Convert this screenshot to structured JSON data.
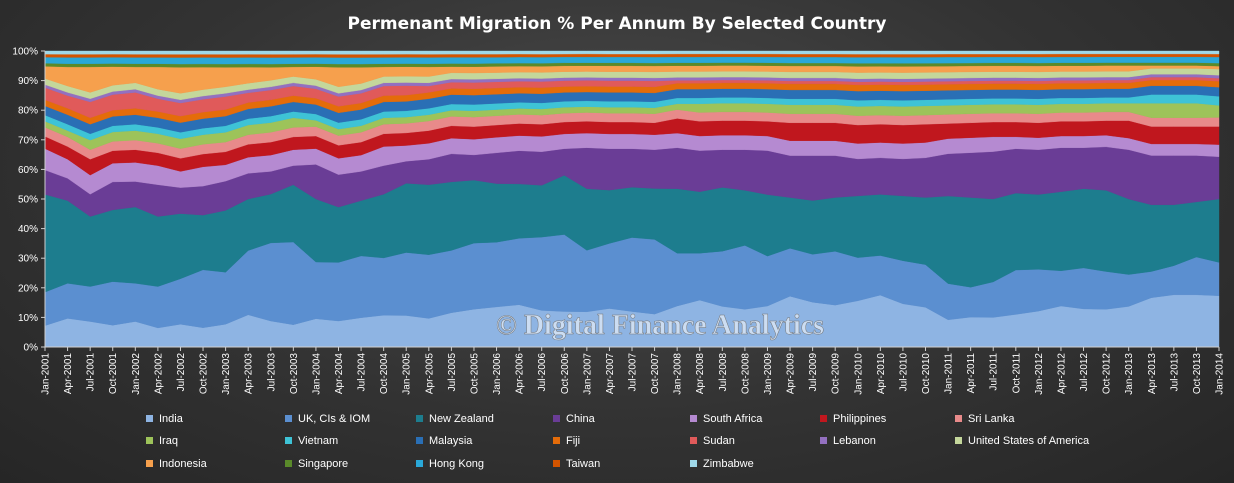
{
  "chart_data": {
    "type": "area",
    "stacking": "percent",
    "title": "Permenant Migration % Per Annum By Selected Country",
    "watermark": "© Digital Finance Analytics",
    "y_ticks": [
      "0%",
      "10%",
      "20%",
      "30%",
      "40%",
      "50%",
      "60%",
      "70%",
      "80%",
      "90%",
      "100%"
    ],
    "ylim": [
      0,
      100
    ],
    "x_tick_labels": [
      "Jan-2001",
      "Apr-2001",
      "Jul-2001",
      "Oct-2001",
      "Jan-2002",
      "Apr-2002",
      "Jul-2002",
      "Oct-2002",
      "Jan-2003",
      "Apr-2003",
      "Jul-2003",
      "Oct-2003",
      "Jan-2004",
      "Apr-2004",
      "Jul-2004",
      "Oct-2004",
      "Jan-2005",
      "Apr-2005",
      "Jul-2005",
      "Oct-2005",
      "Jan-2006",
      "Apr-2006",
      "Jul-2006",
      "Oct-2006",
      "Jan-2007",
      "Apr-2007",
      "Jul-2007",
      "Oct-2007",
      "Jan-2008",
      "Apr-2008",
      "Jul-2008",
      "Oct-2008",
      "Jan-2009",
      "Apr-2009",
      "Jul-2009",
      "Oct-2009",
      "Jan-2010",
      "Apr-2010",
      "Jul-2010",
      "Oct-2010",
      "Jan-2011",
      "Apr-2011",
      "Jul-2011",
      "Oct-2011",
      "Jan-2012",
      "Apr-2012",
      "Jul-2012",
      "Oct-2012",
      "Jan-2013",
      "Apr-2013",
      "Jul-2013",
      "Oct-2013",
      "Jan-2014"
    ],
    "legend_position": "bottom",
    "series": [
      {
        "name": "India",
        "color": "#8eb4e3",
        "values": [
          7,
          9,
          8,
          7,
          8,
          6,
          7,
          6,
          7,
          10,
          8,
          7,
          9,
          8,
          9,
          10,
          10,
          9,
          11,
          12,
          13,
          14,
          12,
          12,
          12,
          13,
          12,
          11,
          14,
          16,
          14,
          13,
          14,
          17,
          15,
          14,
          15,
          17,
          14,
          13,
          9,
          10,
          10,
          11,
          12,
          14,
          13,
          13,
          14,
          17,
          18,
          18,
          17
        ]
      },
      {
        "name": "UK, CIs & IOM",
        "color": "#5b8fd0",
        "values": [
          11,
          11,
          11,
          14,
          12,
          13,
          14,
          18,
          16,
          20,
          24,
          26,
          18,
          18,
          19,
          18,
          20,
          20,
          20,
          21,
          21,
          22,
          24,
          26,
          21,
          22,
          25,
          25,
          18,
          16,
          19,
          22,
          17,
          16,
          16,
          18,
          14,
          13,
          14,
          14,
          12,
          10,
          12,
          15,
          14,
          12,
          14,
          13,
          11,
          9,
          10,
          13,
          11
        ]
      },
      {
        "name": "New Zealand",
        "color": "#1d7d8e",
        "values": [
          32,
          26,
          22,
          23,
          24,
          22,
          20,
          17,
          19,
          16,
          15,
          18,
          20,
          17,
          17,
          20,
          22,
          22,
          22,
          20,
          19,
          18,
          17,
          20,
          21,
          18,
          17,
          17,
          22,
          21,
          22,
          19,
          21,
          17,
          18,
          18,
          20,
          20,
          21,
          22,
          29,
          30,
          28,
          26,
          25,
          27,
          27,
          28,
          26,
          23,
          21,
          19,
          21
        ]
      },
      {
        "name": "China",
        "color": "#6a3d96",
        "values": [
          8,
          7,
          7,
          9,
          8,
          10,
          8,
          9,
          9,
          8,
          7,
          6,
          11,
          10,
          9,
          9,
          7,
          8,
          9,
          8,
          10,
          11,
          11,
          9,
          14,
          14,
          13,
          13,
          14,
          14,
          13,
          14,
          15,
          14,
          15,
          14,
          12,
          12,
          12,
          13,
          14,
          15,
          16,
          15,
          15,
          15,
          14,
          15,
          17,
          17,
          17,
          16,
          14
        ]
      },
      {
        "name": "South Africa",
        "color": "#b58ad1",
        "values": [
          7,
          6,
          6,
          6,
          6,
          6,
          5,
          6,
          5,
          5,
          5,
          5,
          5,
          5,
          5,
          6,
          5,
          5,
          5,
          5,
          5,
          5,
          5,
          5,
          5,
          5,
          5,
          5,
          5,
          5,
          5,
          5,
          5,
          5,
          5,
          5,
          5,
          5,
          5,
          5,
          5,
          5,
          5,
          4,
          4,
          4,
          4,
          4,
          4,
          4,
          4,
          4,
          4
        ]
      },
      {
        "name": "Philippines",
        "color": "#c0171e",
        "values": [
          4,
          4,
          5,
          4,
          4,
          4,
          4,
          4,
          4,
          4,
          4,
          4,
          4,
          4,
          4,
          4,
          4,
          4,
          4,
          4,
          4,
          4,
          4,
          4,
          4,
          4,
          4,
          4,
          5,
          5,
          5,
          5,
          5,
          6,
          6,
          6,
          6,
          6,
          6,
          6,
          5,
          5,
          5,
          5,
          5,
          5,
          5,
          5,
          6,
          6,
          6,
          6,
          6
        ]
      },
      {
        "name": "Sri Lanka",
        "color": "#e88a8a",
        "values": [
          3,
          3,
          3,
          3,
          3,
          3,
          3,
          3,
          3,
          3,
          3,
          3,
          3,
          3,
          3,
          3,
          3,
          3,
          3,
          3,
          3,
          3,
          3,
          3,
          3,
          3,
          3,
          3,
          3,
          3,
          3,
          3,
          3,
          3,
          3,
          3,
          3,
          3,
          3,
          3,
          3,
          3,
          3,
          3,
          3,
          3,
          3,
          3,
          3,
          3,
          3,
          3,
          3
        ]
      },
      {
        "name": "Iraq",
        "color": "#9dc35a",
        "values": [
          2,
          2,
          3,
          3,
          3,
          3,
          3,
          3,
          3,
          3,
          3,
          3,
          2,
          2,
          2,
          2,
          2,
          2,
          2,
          2,
          2,
          2,
          2,
          2,
          2,
          2,
          2,
          2,
          2,
          3,
          3,
          3,
          3,
          3,
          3,
          3,
          3,
          3,
          3,
          3,
          3,
          3,
          3,
          3,
          3,
          3,
          3,
          3,
          3,
          5,
          5,
          5,
          4
        ]
      },
      {
        "name": "Vietnam",
        "color": "#3ec3d6",
        "values": [
          2,
          2,
          2,
          2,
          2,
          2,
          2,
          2,
          2,
          2,
          2,
          2,
          2,
          2,
          2,
          2,
          2,
          2,
          2,
          2,
          2,
          2,
          2,
          2,
          2,
          2,
          2,
          2,
          2,
          2,
          2,
          2,
          2,
          2,
          2,
          2,
          2,
          2,
          2,
          2,
          2,
          2,
          2,
          2,
          2,
          2,
          2,
          2,
          2,
          3,
          3,
          3,
          3
        ]
      },
      {
        "name": "Malaysia",
        "color": "#2a6fb5",
        "values": [
          3,
          3,
          3,
          3,
          3,
          3,
          3,
          3,
          3,
          3,
          3,
          3,
          3,
          3,
          3,
          3,
          3,
          3,
          3,
          3,
          3,
          3,
          3,
          3,
          3,
          3,
          3,
          3,
          3,
          3,
          3,
          3,
          3,
          3,
          3,
          3,
          3,
          3,
          3,
          3,
          3,
          3,
          3,
          3,
          3,
          3,
          3,
          3,
          3,
          3,
          3,
          3,
          3
        ]
      },
      {
        "name": "Fiji",
        "color": "#e46c0a",
        "values": [
          2,
          2,
          2,
          2,
          2,
          2,
          2,
          2,
          2,
          2,
          2,
          2,
          2,
          2,
          2,
          2,
          2,
          2,
          2,
          2,
          2,
          2,
          2,
          2,
          2,
          2,
          2,
          2,
          2,
          2,
          2,
          2,
          2,
          2,
          2,
          2,
          2,
          2,
          2,
          2,
          2,
          2,
          2,
          2,
          2,
          2,
          2,
          2,
          2,
          2,
          2,
          2,
          2
        ]
      },
      {
        "name": "Sudan",
        "color": "#e05a5a",
        "values": [
          4,
          4,
          5,
          5,
          5,
          4,
          4,
          4,
          4,
          3,
          3,
          3,
          3,
          3,
          3,
          3,
          3,
          2,
          2,
          2,
          2,
          2,
          2,
          2,
          2,
          2,
          2,
          2,
          1,
          1,
          1,
          1,
          1,
          1,
          1,
          1,
          1,
          1,
          1,
          1,
          1,
          1,
          1,
          1,
          1,
          1,
          1,
          1,
          1,
          1,
          1,
          1,
          1
        ]
      },
      {
        "name": "Lebanon",
        "color": "#9370c0",
        "values": [
          1,
          1,
          1,
          1,
          1,
          1,
          1,
          1,
          1,
          1,
          1,
          1,
          1,
          1,
          1,
          1,
          1,
          1,
          1,
          1,
          1,
          1,
          1,
          1,
          1,
          1,
          1,
          1,
          1,
          1,
          1,
          1,
          1,
          1,
          1,
          1,
          1,
          1,
          1,
          1,
          1,
          1,
          1,
          1,
          1,
          1,
          1,
          1,
          1,
          1,
          1,
          1,
          1
        ]
      },
      {
        "name": "United States of America",
        "color": "#c4d79b",
        "values": [
          2,
          2,
          2,
          2,
          2,
          2,
          2,
          2,
          2,
          2,
          2,
          2,
          2,
          2,
          2,
          2,
          2,
          2,
          2,
          2,
          2,
          2,
          2,
          2,
          2,
          2,
          2,
          2,
          2,
          2,
          2,
          2,
          2,
          2,
          2,
          2,
          2,
          2,
          2,
          2,
          2,
          2,
          2,
          2,
          2,
          2,
          2,
          2,
          2,
          2,
          2,
          2,
          2
        ]
      },
      {
        "name": "Indonesia",
        "color": "#f6a04d",
        "values": [
          4,
          6,
          8,
          6,
          5,
          7,
          8,
          7,
          6,
          5,
          4,
          3,
          4,
          6,
          5,
          3,
          3,
          3,
          2,
          2,
          2,
          2,
          2,
          2,
          2,
          2,
          2,
          2,
          2,
          2,
          2,
          2,
          2,
          2,
          2,
          2,
          2,
          2,
          2,
          2,
          2,
          2,
          2,
          2,
          2,
          2,
          2,
          2,
          2,
          1,
          1,
          1,
          1
        ]
      },
      {
        "name": "Singapore",
        "color": "#5a8a2a",
        "values": [
          1,
          1,
          1,
          1,
          1,
          1,
          1,
          1,
          1,
          1,
          1,
          1,
          1,
          1,
          1,
          1,
          1,
          1,
          1,
          1,
          1,
          1,
          1,
          1,
          1,
          1,
          1,
          1,
          1,
          1,
          1,
          1,
          1,
          1,
          1,
          1,
          1,
          1,
          1,
          1,
          1,
          1,
          1,
          1,
          1,
          1,
          1,
          1,
          1,
          1,
          1,
          1,
          1
        ]
      },
      {
        "name": "Hong Kong",
        "color": "#2aa8d8",
        "values": [
          2,
          2,
          2,
          2,
          2,
          2,
          2,
          2,
          2,
          2,
          2,
          2,
          2,
          2,
          2,
          2,
          2,
          2,
          2,
          2,
          2,
          2,
          2,
          2,
          2,
          2,
          2,
          2,
          2,
          2,
          2,
          2,
          2,
          2,
          2,
          2,
          2,
          2,
          2,
          2,
          2,
          2,
          2,
          2,
          2,
          2,
          2,
          2,
          2,
          2,
          2,
          2,
          2
        ]
      },
      {
        "name": "Taiwan",
        "color": "#d35400",
        "values": [
          1,
          1,
          1,
          1,
          1,
          1,
          1,
          1,
          1,
          1,
          1,
          1,
          1,
          1,
          1,
          1,
          1,
          1,
          1,
          1,
          1,
          1,
          1,
          1,
          1,
          1,
          1,
          1,
          1,
          1,
          1,
          1,
          1,
          1,
          1,
          1,
          1,
          1,
          1,
          1,
          1,
          1,
          1,
          1,
          1,
          1,
          1,
          1,
          1,
          1,
          1,
          1,
          1
        ]
      },
      {
        "name": "Zimbabwe",
        "color": "#9fd8e8",
        "values": [
          1,
          1,
          1,
          1,
          1,
          1,
          1,
          1,
          1,
          1,
          1,
          1,
          1,
          1,
          1,
          1,
          1,
          1,
          1,
          1,
          1,
          1,
          1,
          1,
          1,
          1,
          1,
          1,
          1,
          1,
          1,
          1,
          1,
          1,
          1,
          1,
          1,
          1,
          1,
          1,
          1,
          1,
          1,
          1,
          1,
          1,
          1,
          1,
          1,
          1,
          1,
          1,
          1
        ]
      }
    ]
  }
}
